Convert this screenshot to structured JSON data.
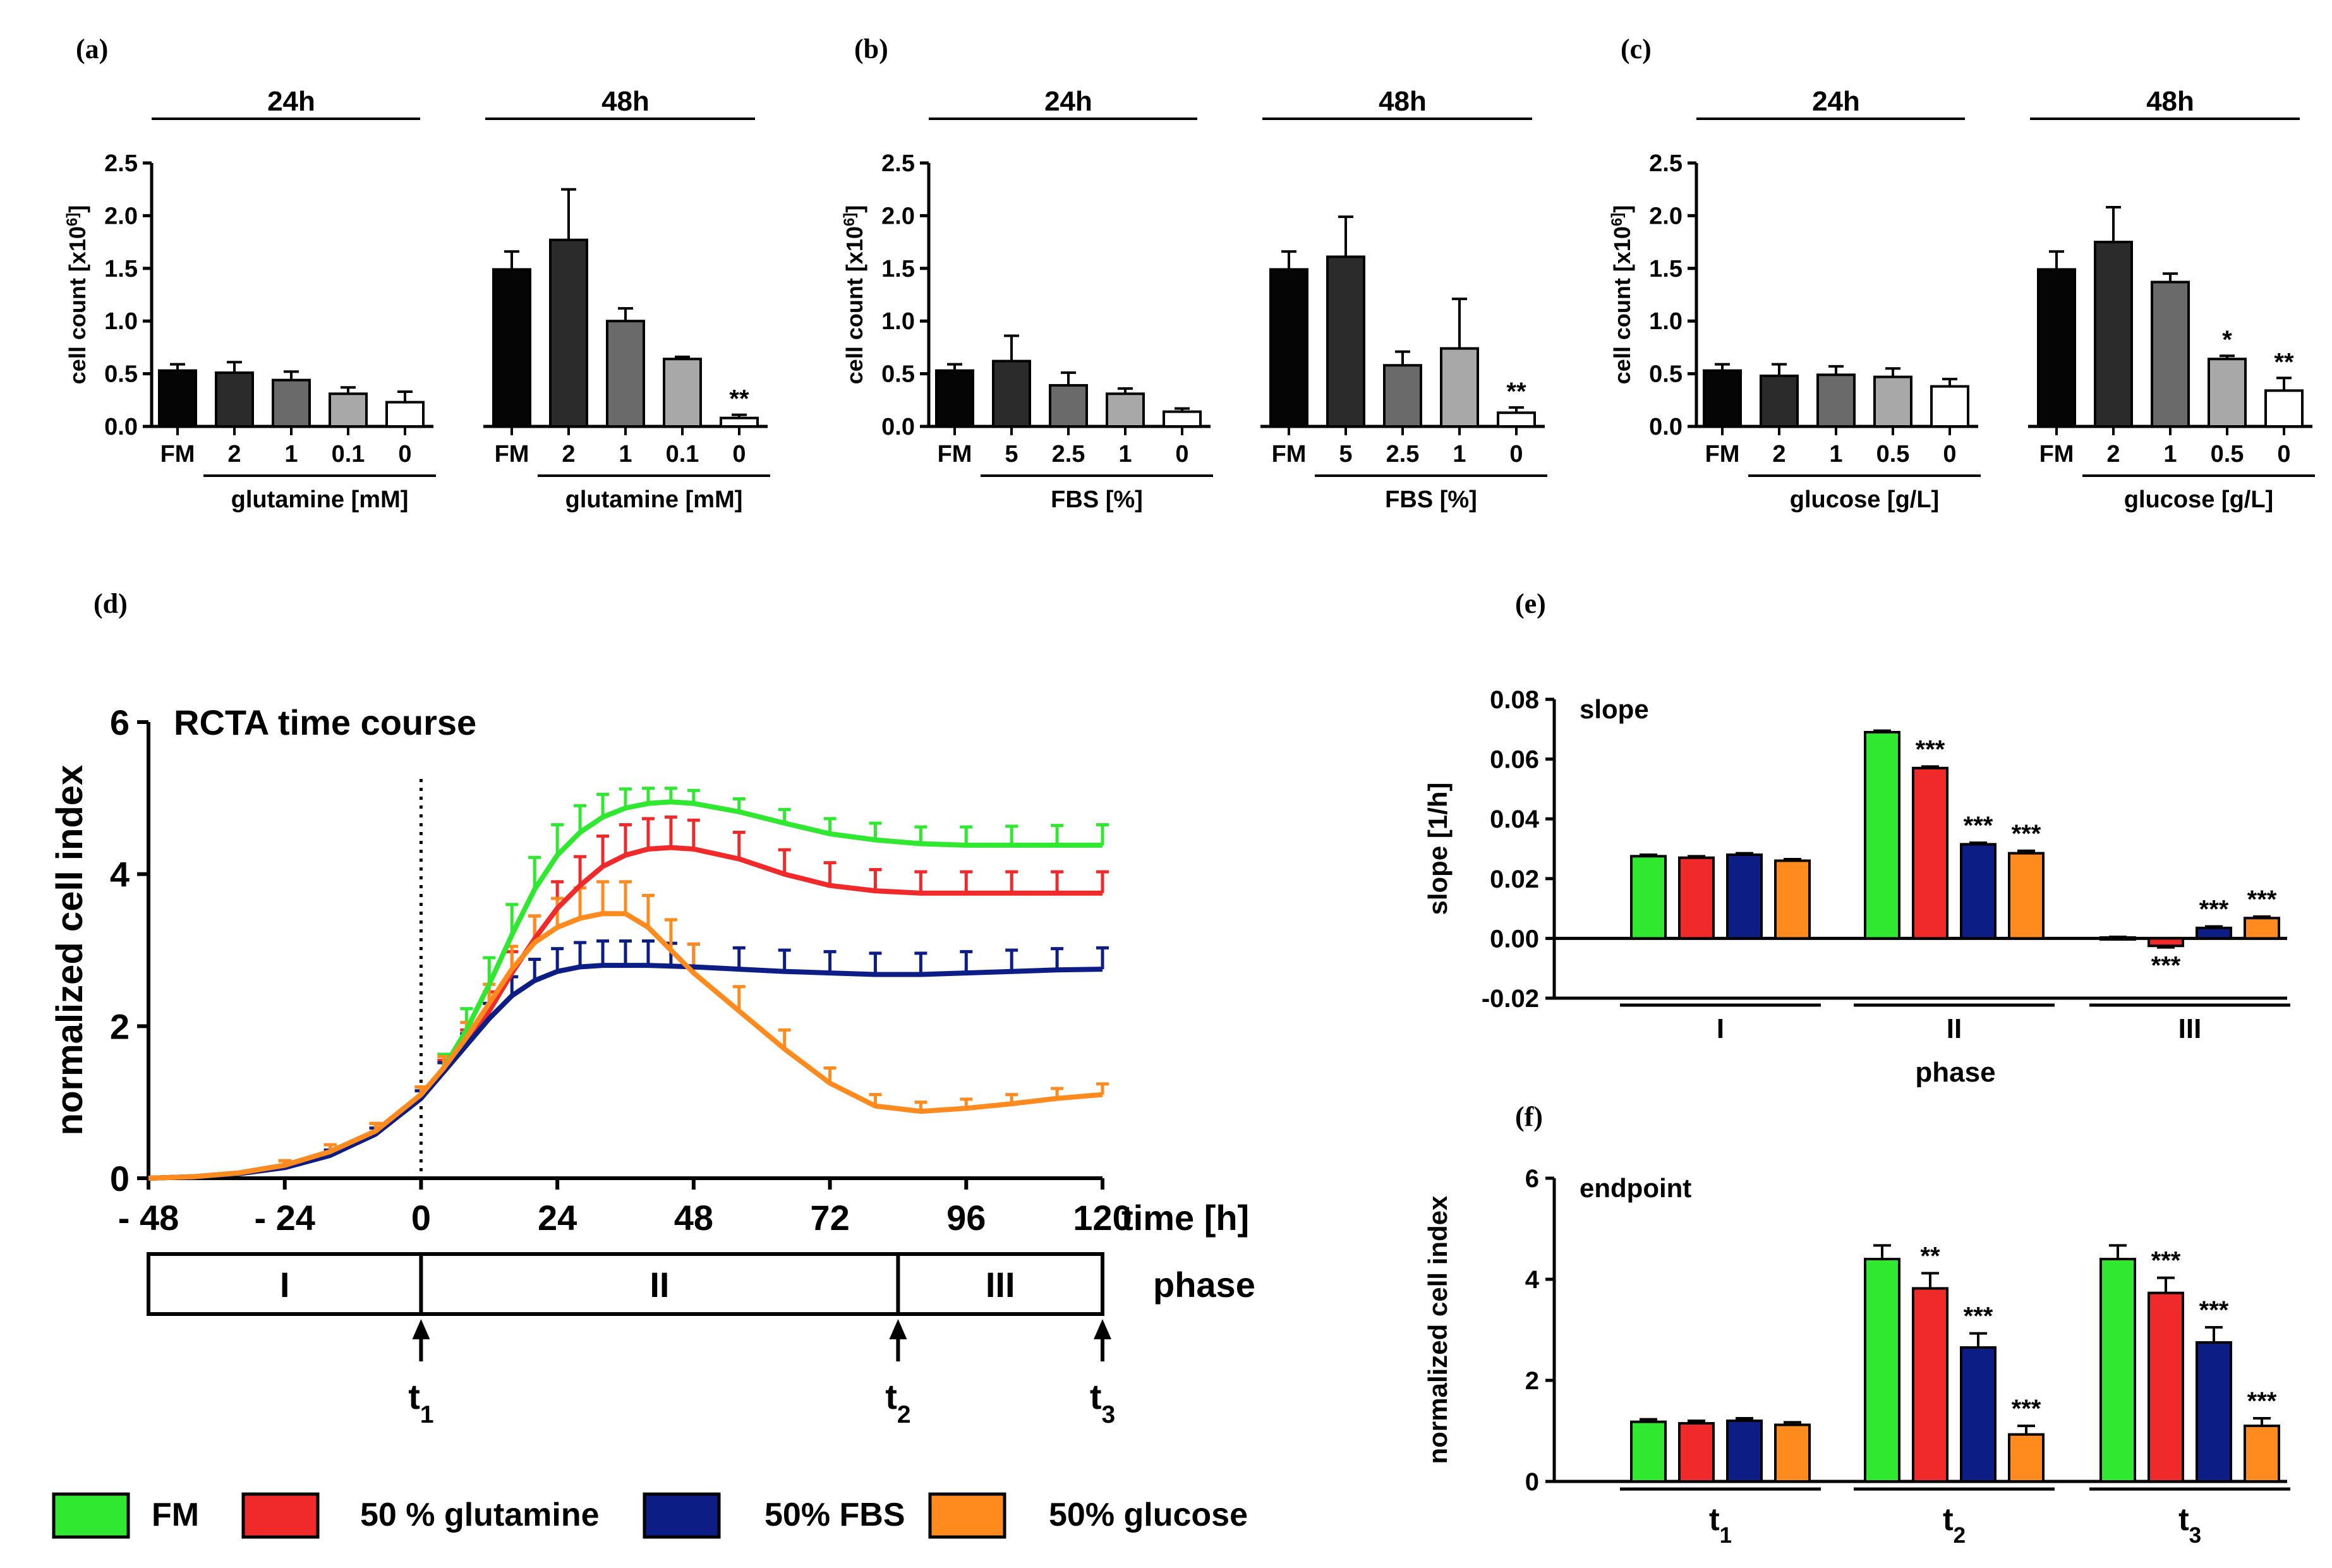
{
  "colors": {
    "FM": "#2fe82f",
    "glutamine": "#f02a2a",
    "FBS": "#0c1d86",
    "glucose": "#ff8a1e",
    "bar_black": "#050505",
    "bar_dark": "#2b2b2b",
    "bar_mid": "#6a6a6a",
    "bar_light": "#a8a8a8",
    "bar_white": "#ffffff"
  },
  "chart_data": [
    {
      "panel": "(a)",
      "type": "bar",
      "ylabel": "cell count [x10^6]",
      "ylim": [
        0,
        2.5
      ],
      "yticks": [
        "0.0",
        "0.5",
        "1.0",
        "1.5",
        "2.0",
        "2.5"
      ],
      "groups": [
        {
          "title": "24h",
          "sublabel": "glutamine [mM]",
          "categories": [
            "FM",
            "2",
            "1",
            "0.1",
            "0"
          ],
          "values": [
            0.53,
            0.51,
            0.44,
            0.31,
            0.23
          ],
          "errors": [
            0.06,
            0.1,
            0.08,
            0.06,
            0.1
          ],
          "annotations": [
            "",
            "",
            "",
            "",
            ""
          ]
        },
        {
          "title": "48h",
          "sublabel": "glutamine [mM]",
          "categories": [
            "FM",
            "2",
            "1",
            "0.1",
            "0"
          ],
          "values": [
            1.49,
            1.77,
            1.0,
            0.64,
            0.08
          ],
          "errors": [
            0.17,
            0.48,
            0.12,
            0.02,
            0.03
          ],
          "annotations": [
            "",
            "",
            "",
            "",
            "**"
          ]
        }
      ]
    },
    {
      "panel": "(b)",
      "type": "bar",
      "ylabel": "cell count [x10^6]",
      "ylim": [
        0,
        2.5
      ],
      "yticks": [
        "0.0",
        "0.5",
        "1.0",
        "1.5",
        "2.0",
        "2.5"
      ],
      "groups": [
        {
          "title": "24h",
          "sublabel": "FBS [%]",
          "categories": [
            "FM",
            "5",
            "2.5",
            "1",
            "0"
          ],
          "values": [
            0.53,
            0.62,
            0.39,
            0.31,
            0.14
          ],
          "errors": [
            0.06,
            0.24,
            0.12,
            0.05,
            0.03
          ],
          "annotations": [
            "",
            "",
            "",
            "",
            ""
          ]
        },
        {
          "title": "48h",
          "sublabel": "FBS [%]",
          "categories": [
            "FM",
            "5",
            "2.5",
            "1",
            "0"
          ],
          "values": [
            1.49,
            1.61,
            0.58,
            0.74,
            0.13
          ],
          "errors": [
            0.17,
            0.38,
            0.13,
            0.47,
            0.05
          ],
          "annotations": [
            "",
            "",
            "",
            "",
            "**"
          ]
        }
      ]
    },
    {
      "panel": "(c)",
      "type": "bar",
      "ylabel": "cell count [x10^6]",
      "ylim": [
        0,
        2.5
      ],
      "yticks": [
        "0.0",
        "0.5",
        "1.0",
        "1.5",
        "2.0",
        "2.5"
      ],
      "groups": [
        {
          "title": "24h",
          "sublabel": "glucose [g/L]",
          "categories": [
            "FM",
            "2",
            "1",
            "0.5",
            "0"
          ],
          "values": [
            0.53,
            0.48,
            0.49,
            0.47,
            0.38
          ],
          "errors": [
            0.06,
            0.11,
            0.08,
            0.08,
            0.07
          ],
          "annotations": [
            "",
            "",
            "",
            "",
            ""
          ]
        },
        {
          "title": "48h",
          "sublabel": "glucose [g/L]",
          "categories": [
            "FM",
            "2",
            "1",
            "0.5",
            "0"
          ],
          "values": [
            1.49,
            1.75,
            1.37,
            0.64,
            0.34
          ],
          "errors": [
            0.17,
            0.33,
            0.08,
            0.03,
            0.12
          ],
          "annotations": [
            "",
            "",
            "",
            "*",
            "**"
          ]
        }
      ]
    },
    {
      "panel": "(d)",
      "type": "line",
      "title": "RCTA time course",
      "ylabel": "normalized cell index",
      "xlabel": "time [h]",
      "xlim": [
        -48,
        120
      ],
      "ylim": [
        0,
        6
      ],
      "xticks": [
        "- 48",
        "- 24",
        "0",
        "24",
        "48",
        "72",
        "96",
        "120"
      ],
      "yticks": [
        "0",
        "2",
        "4",
        "6"
      ],
      "x": [
        -48,
        -40,
        -32,
        -24,
        -16,
        -8,
        0,
        4,
        8,
        12,
        16,
        20,
        24,
        28,
        32,
        36,
        40,
        44,
        48,
        56,
        64,
        72,
        80,
        88,
        96,
        104,
        112,
        120
      ],
      "series": [
        {
          "name": "FM",
          "values": [
            0,
            0.02,
            0.07,
            0.17,
            0.35,
            0.62,
            1.1,
            1.45,
            1.95,
            2.55,
            3.2,
            3.8,
            4.25,
            4.55,
            4.75,
            4.87,
            4.93,
            4.95,
            4.93,
            4.82,
            4.67,
            4.53,
            4.45,
            4.4,
            4.38,
            4.38,
            4.38,
            4.38
          ],
          "errors": [
            0,
            0.02,
            0.04,
            0.06,
            0.09,
            0.1,
            0.1,
            0.18,
            0.28,
            0.35,
            0.4,
            0.42,
            0.4,
            0.35,
            0.3,
            0.25,
            0.2,
            0.18,
            0.17,
            0.17,
            0.18,
            0.2,
            0.22,
            0.22,
            0.24,
            0.25,
            0.26,
            0.27
          ]
        },
        {
          "name": "50 % glutamine",
          "values": [
            0,
            0.02,
            0.07,
            0.17,
            0.35,
            0.62,
            1.1,
            1.4,
            1.75,
            2.2,
            2.7,
            3.15,
            3.55,
            3.85,
            4.1,
            4.25,
            4.33,
            4.35,
            4.33,
            4.2,
            4.0,
            3.85,
            3.78,
            3.75,
            3.75,
            3.75,
            3.75,
            3.75
          ],
          "errors": [
            0,
            0.02,
            0.04,
            0.06,
            0.09,
            0.1,
            0.1,
            0.15,
            0.2,
            0.25,
            0.28,
            0.3,
            0.35,
            0.38,
            0.4,
            0.4,
            0.4,
            0.4,
            0.38,
            0.35,
            0.32,
            0.3,
            0.28,
            0.28,
            0.28,
            0.28,
            0.28,
            0.28
          ]
        },
        {
          "name": "50% FBS",
          "values": [
            0,
            0.02,
            0.06,
            0.14,
            0.3,
            0.58,
            1.05,
            1.4,
            1.75,
            2.1,
            2.4,
            2.6,
            2.72,
            2.78,
            2.8,
            2.8,
            2.8,
            2.79,
            2.78,
            2.75,
            2.72,
            2.7,
            2.68,
            2.68,
            2.7,
            2.72,
            2.74,
            2.75
          ],
          "errors": [
            0,
            0.02,
            0.03,
            0.05,
            0.07,
            0.08,
            0.1,
            0.12,
            0.15,
            0.2,
            0.25,
            0.28,
            0.3,
            0.32,
            0.32,
            0.32,
            0.32,
            0.3,
            0.3,
            0.28,
            0.28,
            0.28,
            0.28,
            0.28,
            0.28,
            0.28,
            0.28,
            0.28
          ]
        },
        {
          "name": "50% glucose",
          "values": [
            0,
            0.02,
            0.07,
            0.17,
            0.35,
            0.62,
            1.1,
            1.45,
            1.85,
            2.3,
            2.75,
            3.1,
            3.3,
            3.42,
            3.48,
            3.48,
            3.3,
            3.0,
            2.7,
            2.2,
            1.7,
            1.25,
            0.95,
            0.88,
            0.92,
            0.98,
            1.05,
            1.1
          ],
          "errors": [
            0,
            0.02,
            0.04,
            0.06,
            0.09,
            0.1,
            0.1,
            0.15,
            0.2,
            0.25,
            0.3,
            0.35,
            0.38,
            0.4,
            0.42,
            0.42,
            0.42,
            0.4,
            0.38,
            0.32,
            0.25,
            0.2,
            0.15,
            0.12,
            0.12,
            0.12,
            0.13,
            0.14
          ]
        }
      ],
      "phases": {
        "label": "phase",
        "boundaries": [
          -48,
          0,
          84,
          120
        ],
        "names": [
          "I",
          "II",
          "III"
        ],
        "markers": [
          "1",
          "2",
          "3"
        ],
        "marker_prefix": "t",
        "marker_x": [
          0,
          84,
          120
        ]
      }
    },
    {
      "panel": "(e)",
      "type": "bar",
      "title": "slope",
      "ylabel": "slope [1/h]",
      "xlabel": "phase",
      "ylim": [
        -0.02,
        0.08
      ],
      "yticks": [
        "-0.02",
        "0.00",
        "0.02",
        "0.04",
        "0.06",
        "0.08"
      ],
      "categories": [
        "I",
        "II",
        "III"
      ],
      "series": [
        {
          "name": "FM",
          "values": [
            0.0275,
            0.069,
            0.0003
          ],
          "errors": [
            0.0005,
            0.0005,
            0.0002
          ],
          "annotations": [
            "",
            "",
            ""
          ]
        },
        {
          "name": "50 % glutamine",
          "values": [
            0.027,
            0.057,
            -0.0025
          ],
          "errors": [
            0.0005,
            0.0005,
            0.0005
          ],
          "annotations": [
            "",
            "***",
            "***"
          ]
        },
        {
          "name": "50% FBS",
          "values": [
            0.028,
            0.0315,
            0.0035
          ],
          "errors": [
            0.0005,
            0.0005,
            0.0005
          ],
          "annotations": [
            "",
            "***",
            "***"
          ]
        },
        {
          "name": "50% glucose",
          "values": [
            0.026,
            0.0285,
            0.0068
          ],
          "errors": [
            0.0005,
            0.0008,
            0.0005
          ],
          "annotations": [
            "",
            "***",
            "***"
          ]
        }
      ]
    },
    {
      "panel": "(f)",
      "type": "bar",
      "title": "endpoint",
      "ylabel": "normalized cell index",
      "ylim": [
        0,
        6
      ],
      "yticks": [
        "0",
        "2",
        "4",
        "6"
      ],
      "category_prefix": "t",
      "categories": [
        "1",
        "2",
        "3"
      ],
      "series": [
        {
          "name": "FM",
          "values": [
            1.18,
            4.4,
            4.4
          ],
          "errors": [
            0.05,
            0.27,
            0.27
          ],
          "annotations": [
            "",
            "",
            ""
          ]
        },
        {
          "name": "50 % glutamine",
          "values": [
            1.15,
            3.82,
            3.73
          ],
          "errors": [
            0.05,
            0.3,
            0.3
          ],
          "annotations": [
            "",
            "**",
            "***"
          ]
        },
        {
          "name": "50% FBS",
          "values": [
            1.2,
            2.65,
            2.75
          ],
          "errors": [
            0.05,
            0.28,
            0.3
          ],
          "annotations": [
            "",
            "***",
            "***"
          ]
        },
        {
          "name": "50% glucose",
          "values": [
            1.12,
            0.93,
            1.1
          ],
          "errors": [
            0.05,
            0.17,
            0.15
          ],
          "annotations": [
            "",
            "***",
            "***"
          ]
        }
      ]
    }
  ],
  "legend": [
    "FM",
    "50 % glutamine",
    "50% FBS",
    "50% glucose"
  ]
}
